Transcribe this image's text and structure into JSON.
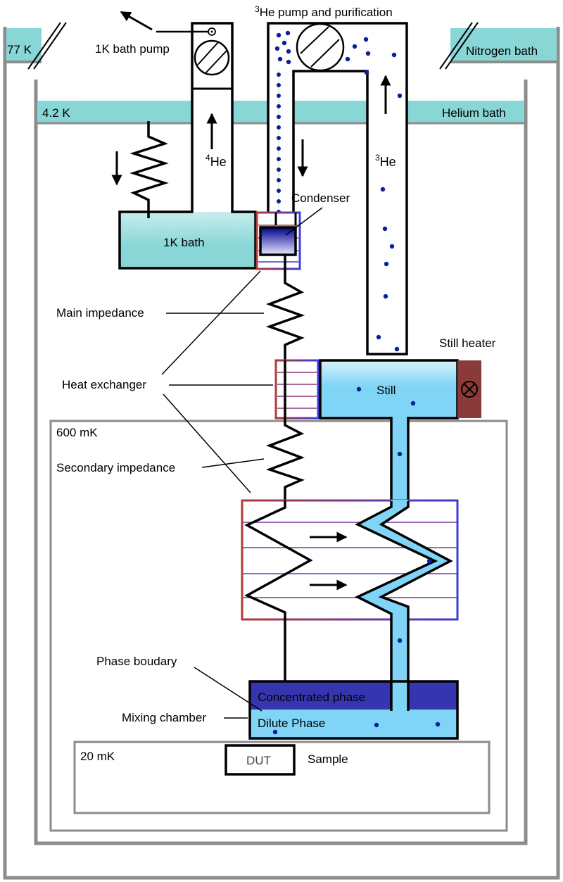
{
  "labels": {
    "he3_pump_sup": "3",
    "he3_pump": "He pump and purification",
    "bath1k_pump": "1K bath pump",
    "k77": "77 K",
    "nitrogen_bath": "Nitrogen bath",
    "k42": "4.2 K",
    "helium_bath": "Helium bath",
    "he4_sup": "4",
    "he4": "He",
    "he3_sup": "3",
    "he3": "He",
    "condenser": "Condenser",
    "bath1k": "1K bath",
    "main_impedance": "Main impedance",
    "still_heater": "Still heater",
    "heat_exchanger": "Heat exchanger",
    "still": "Still",
    "mk600": "600 mK",
    "secondary_impedance": "Secondary impedance",
    "phase_boundary": "Phase boudary",
    "concentrated_phase": "Concentrated phase",
    "mixing_chamber": "Mixing chamber",
    "dilute_phase": "Dilute Phase",
    "mk20": "20 mK",
    "dut": "DUT",
    "sample": "Sample"
  },
  "colors": {
    "bath_fill": "#89d6d6",
    "bath_fill_light": "#c8eeee",
    "still_fill": "#80d4f6",
    "concentrated": "#3535b0",
    "dot": "#0a1f9a",
    "hx_red": "#b03a3a",
    "hx_blue": "#3c3cd8",
    "heater": "#8b3a3a",
    "gray_wall": "#8c8c8c"
  }
}
